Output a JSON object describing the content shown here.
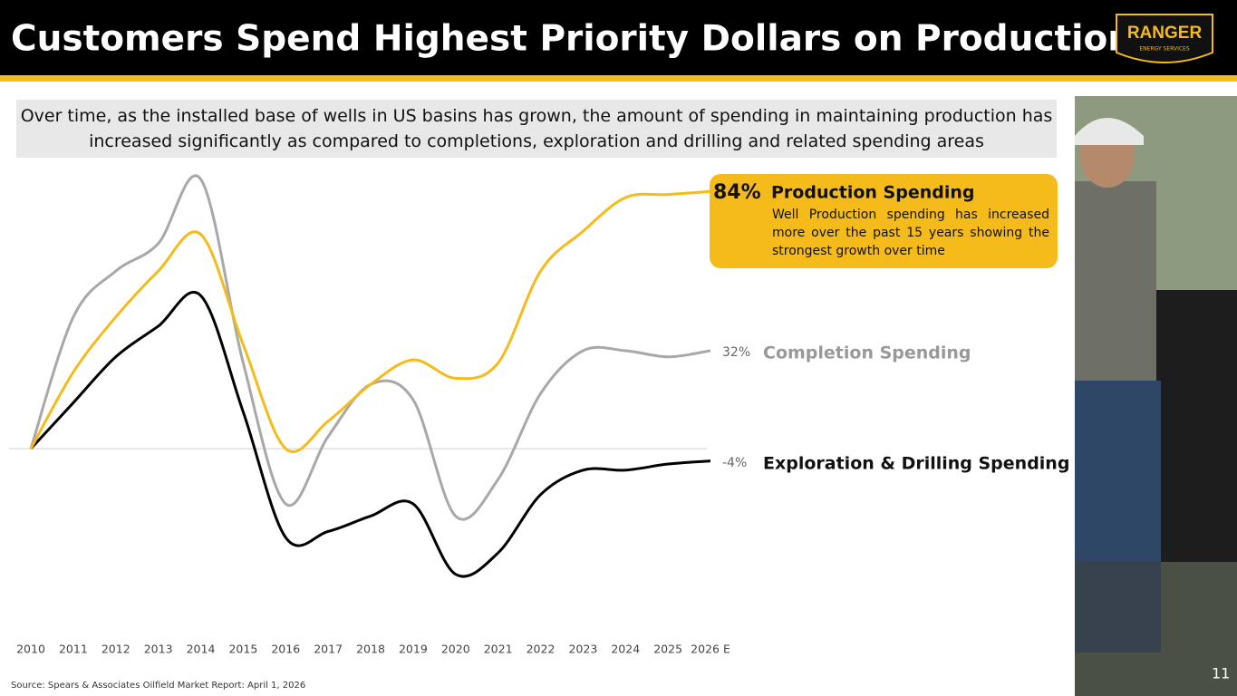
{
  "chart_data": {
    "type": "line",
    "title": "Customers Spend Highest Priority Dollars on Production",
    "subtitle": "Over time, as the installed base of wells in US basins has grown, the amount of spending in maintaining production has increased significantly as compared to completions, exploration and drilling and related spending areas",
    "categories": [
      "2010",
      "2011",
      "2012",
      "2013",
      "2014",
      "2015",
      "2016",
      "2017",
      "2018",
      "2019",
      "2020",
      "2021",
      "2022",
      "2023",
      "2024",
      "2025",
      "2026 E"
    ],
    "ylim": [
      -55,
      90
    ],
    "series": [
      {
        "name": "Production Spending",
        "color": "#f5bb1a",
        "values": [
          0,
          25,
          43,
          58,
          70,
          34,
          0,
          9,
          21,
          29,
          23,
          28,
          58,
          71,
          82,
          83,
          84
        ],
        "value_labels": [
          null,
          null,
          null,
          null,
          null,
          null,
          null,
          null,
          null,
          null,
          null,
          null,
          null,
          null,
          null,
          null,
          "84%"
        ]
      },
      {
        "name": "Completion Spending",
        "color": "#a8a8a8",
        "values": [
          0,
          43,
          58,
          67,
          88,
          28,
          -18,
          4,
          21,
          16,
          -22,
          -10,
          18,
          32,
          32,
          30,
          32
        ],
        "value_labels": [
          null,
          null,
          null,
          null,
          null,
          null,
          null,
          null,
          null,
          null,
          null,
          null,
          null,
          null,
          null,
          null,
          "32%"
        ]
      },
      {
        "name": "Exploration & Drilling Spending",
        "color": "#000000",
        "values": [
          0,
          15,
          30,
          40,
          50,
          12,
          -29,
          -27,
          -22,
          -18,
          -41,
          -34,
          -15,
          -7,
          -7,
          -5,
          -4
        ],
        "value_labels": [
          null,
          null,
          null,
          null,
          null,
          null,
          null,
          null,
          null,
          null,
          null,
          null,
          null,
          null,
          null,
          null,
          "-4%"
        ]
      }
    ],
    "annotation": "Well Production spending has increased more over the past 15 years showing the strongest growth over time",
    "source": "Source: Spears & Associates Oilfield Market Report: April 1, 2026"
  },
  "slide": {
    "logo": "RANGER",
    "logo_sub": "ENERGY SERVICES",
    "page_number": "11"
  }
}
